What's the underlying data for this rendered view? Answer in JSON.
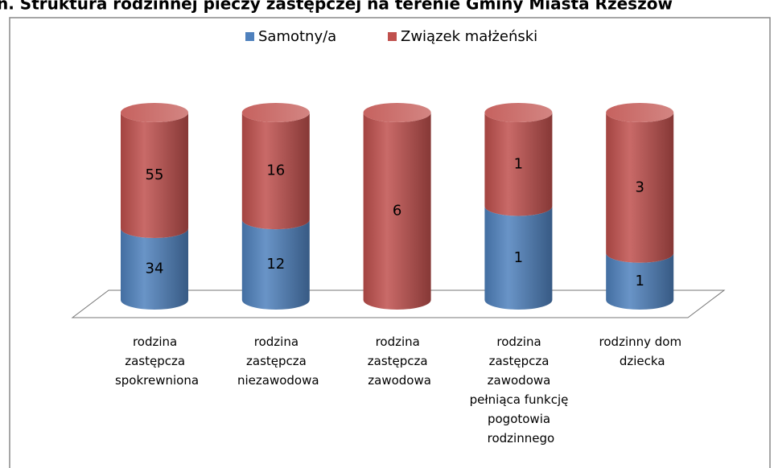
{
  "chart_data": {
    "type": "cylinder_stacked_100",
    "title": "n. Struktura rodzinnej pieczy zastępczej na terenie Gminy Miasta Rzeszów",
    "categories": [
      "rodzina zastępcza spokrewniona",
      "rodzina zastępcza niezawodowa",
      "rodzina zastępcza zawodowa",
      "rodzina zastępcza zawodowa pełniąca funkcję pogotowia rodzinnego",
      "rodzinny dom dziecka"
    ],
    "series": [
      {
        "name": "Samotny/a",
        "color": "#4f81bd",
        "values": [
          34,
          12,
          0,
          1,
          1
        ]
      },
      {
        "name": "Związek małżeński",
        "color": "#c0504d",
        "values": [
          55,
          16,
          6,
          1,
          3
        ]
      }
    ],
    "legend": "top"
  }
}
